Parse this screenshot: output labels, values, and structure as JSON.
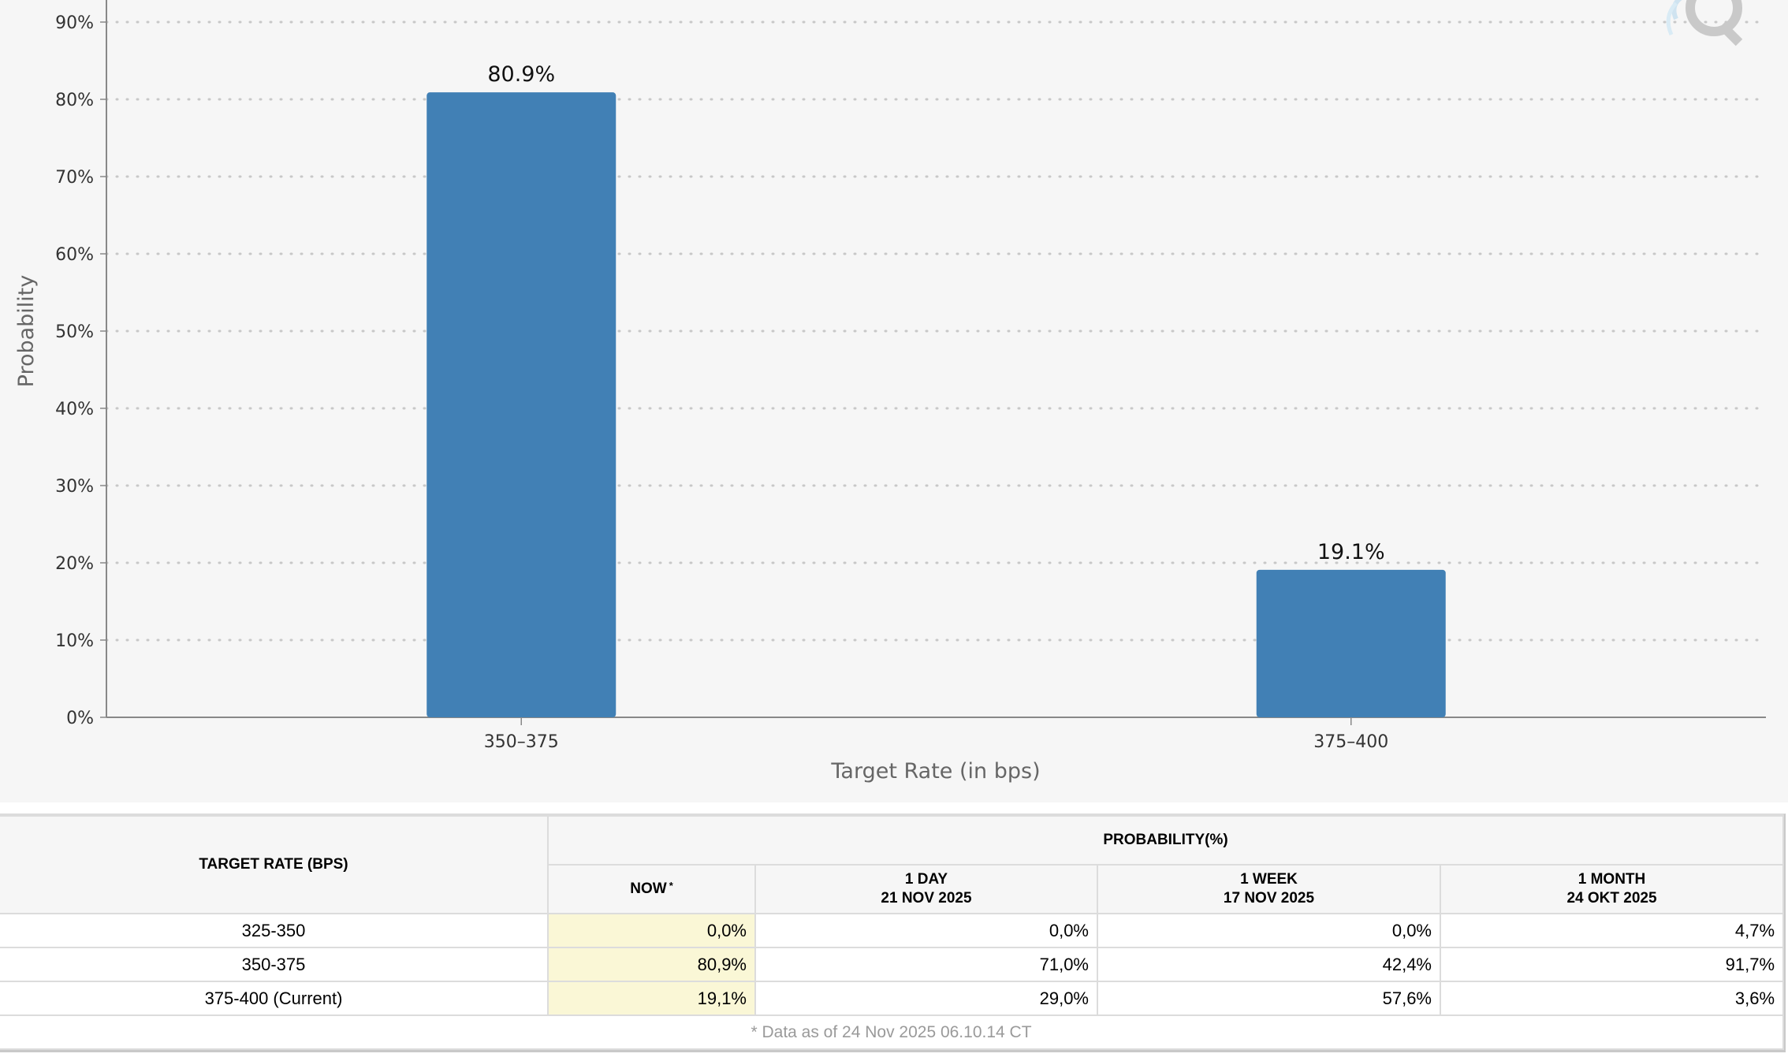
{
  "chart_data": {
    "type": "bar",
    "categories": [
      "350-375",
      "375-400"
    ],
    "values": [
      80.9,
      19.1
    ],
    "value_labels": [
      "80.9%",
      "19.1%"
    ],
    "xlabel": "Target Rate (in bps)",
    "ylabel": "Probability",
    "ylim": [
      0,
      90
    ],
    "yticks": [
      0,
      10,
      20,
      30,
      40,
      50,
      60,
      70,
      80,
      90
    ],
    "ytick_labels": [
      "0%",
      "10%",
      "20%",
      "30%",
      "40%",
      "50%",
      "60%",
      "70%",
      "80%",
      "90%"
    ],
    "grid": true,
    "bar_color": "#4180b5"
  },
  "table": {
    "target_rate_header": "TARGET RATE (BPS)",
    "probability_header": "PROBABILITY(%)",
    "columns": [
      {
        "line1": "NOW",
        "line2": "",
        "asterisk": "*"
      },
      {
        "line1": "1 DAY",
        "line2": "21 NOV 2025",
        "asterisk": ""
      },
      {
        "line1": "1 WEEK",
        "line2": "17 NOV 2025",
        "asterisk": ""
      },
      {
        "line1": "1 MONTH",
        "line2": "24 OKT 2025",
        "asterisk": ""
      }
    ],
    "rows": [
      {
        "rate": "325-350",
        "values": [
          "0,0%",
          "0,0%",
          "0,0%",
          "4,7%"
        ]
      },
      {
        "rate": "350-375",
        "values": [
          "80,9%",
          "71,0%",
          "42,4%",
          "91,7%"
        ]
      },
      {
        "rate": "375-400 (Current)",
        "values": [
          "19,1%",
          "29,0%",
          "57,6%",
          "3,6%"
        ]
      }
    ],
    "footnote": "* Data as of 24 Nov 2025 06.10.14 CT"
  },
  "colors": {
    "accent": "#4180b5",
    "now_highlight": "#faf7d6",
    "chart_bg": "#f6f6f6"
  }
}
